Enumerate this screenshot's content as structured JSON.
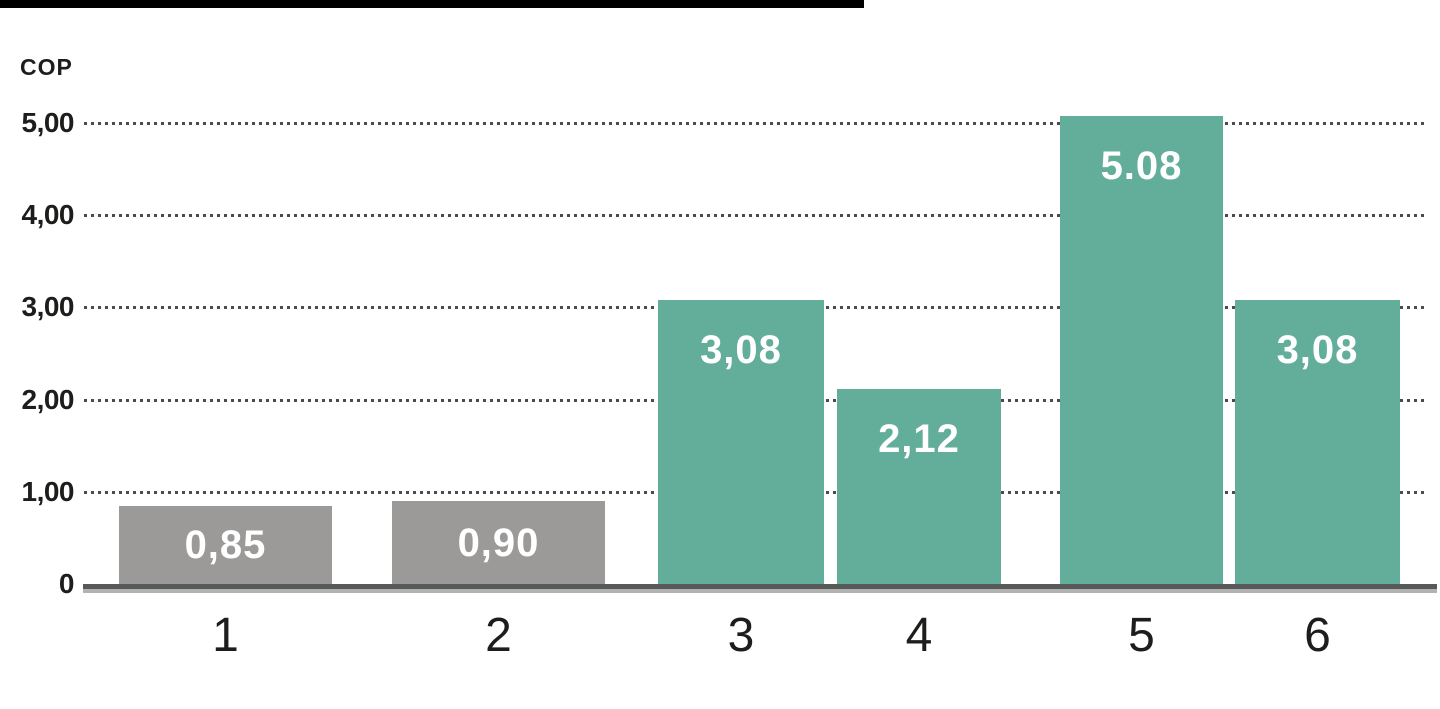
{
  "page": {
    "background": "#ffffff"
  },
  "top_bar": {
    "filled_percent": 60,
    "color": "#000000"
  },
  "chart_data": {
    "type": "bar",
    "title": "",
    "ylabel": "COP",
    "xlabel": "",
    "categories": [
      "1",
      "2",
      "3",
      "4",
      "5",
      "6"
    ],
    "values": [
      0.85,
      0.9,
      3.08,
      2.12,
      5.08,
      3.08
    ],
    "bar_labels": [
      "0,85",
      "0,90",
      "3,08",
      "2,12",
      "5.08",
      "3,08"
    ],
    "bar_color_names": [
      "gray",
      "gray",
      "teal",
      "teal",
      "teal",
      "teal"
    ],
    "y_ticks": [
      {
        "value": 0,
        "label": "0"
      },
      {
        "value": 1,
        "label": "1,00"
      },
      {
        "value": 2,
        "label": "2,00"
      },
      {
        "value": 3,
        "label": "3,00"
      },
      {
        "value": 4,
        "label": "4,00"
      },
      {
        "value": 5,
        "label": "5,00"
      }
    ],
    "ylim": [
      0,
      5.5
    ],
    "grid": "horizontal-dotted",
    "legend": "none"
  },
  "colors": {
    "teal": "#63AE9B",
    "gray": "#9B9A98",
    "text": "#1D1D1B",
    "grid_dots": "#4B4B4B",
    "axis_dark": "#57585A",
    "axis_light": "#B2B2B0",
    "bar_label_text": "#FFFFFF"
  }
}
